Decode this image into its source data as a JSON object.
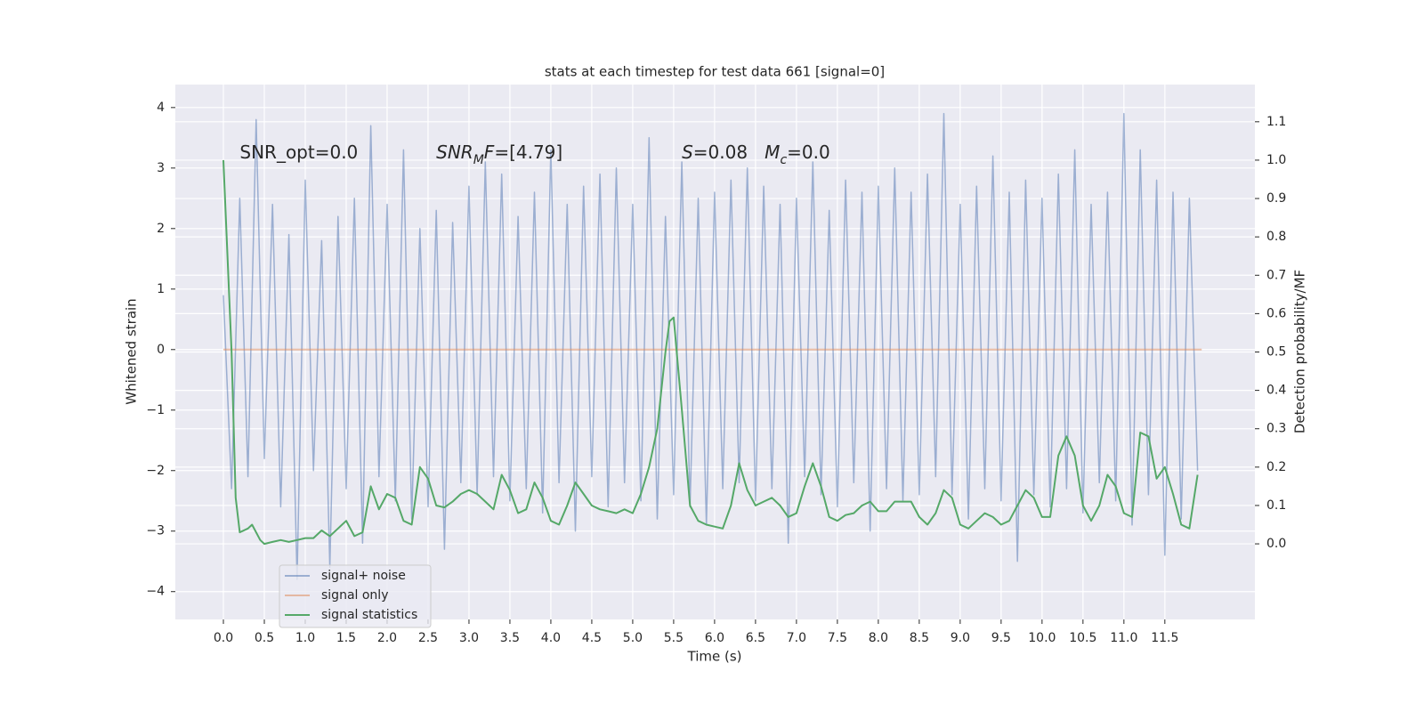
{
  "chart_data": {
    "type": "line",
    "title": "stats at each timestep for test data 661 [signal=0]",
    "xlabel": "Time (s)",
    "ylabel": "Whitened strain",
    "y2label": "Detection probability/MF",
    "xlim": [
      -0.587,
      12.6
    ],
    "ylim": [
      -4.46,
      4.38
    ],
    "y2lim": [
      -0.197,
      1.197
    ],
    "xticks": [
      {
        "value": 0,
        "label": "0.0"
      },
      0.5,
      {
        "value": 1,
        "label": "1.0"
      },
      1.5,
      {
        "value": 2,
        "label": "2.0"
      },
      2.5,
      {
        "value": 3,
        "label": "3.0"
      },
      3.5,
      {
        "value": 4,
        "label": "4.0"
      },
      4.5,
      {
        "value": 5,
        "label": "5.0"
      },
      5.5,
      {
        "value": 6,
        "label": "6.0"
      },
      6.5,
      {
        "value": 7,
        "label": "7.0"
      },
      7.5,
      {
        "value": 8,
        "label": "8.0"
      },
      8.5,
      {
        "value": 9,
        "label": "9.0"
      },
      9.5,
      {
        "value": 10,
        "label": "10.0"
      },
      10.5,
      {
        "value": 11,
        "label": "11.0"
      },
      11.5
    ],
    "yticks": [
      {
        "value": -4,
        "label": "−4"
      },
      {
        "value": -3,
        "label": "−3"
      },
      {
        "value": -2,
        "label": "−2"
      },
      {
        "value": -1,
        "label": "−1"
      },
      0,
      1,
      2,
      3,
      4
    ],
    "y2ticks": [
      {
        "value": 0,
        "label": "0.0"
      },
      0.1,
      0.2,
      0.3,
      0.4,
      0.5,
      0.6,
      0.7,
      0.8,
      0.9,
      {
        "value": 1,
        "label": "1.0"
      },
      1.1
    ],
    "grid": true,
    "legend": "lower left",
    "annotations": [
      {
        "x": 0.2,
        "y": 1.0,
        "parts": [
          {
            "text": "SNR_opt=0.0"
          }
        ]
      },
      {
        "x": 2.6,
        "y": 1.0,
        "parts": [
          {
            "text": "SNR",
            "italic": true
          },
          {
            "text": "M",
            "italic": true,
            "sub": true
          },
          {
            "text": "F",
            "italic": true
          },
          {
            "text": "=[4.79]"
          }
        ]
      },
      {
        "x": 5.6,
        "y": 1.0,
        "parts": [
          {
            "text": "S",
            "italic": true
          },
          {
            "text": "=0.08   "
          },
          {
            "text": "M",
            "italic": true
          },
          {
            "text": "c",
            "italic": true,
            "sub": true
          },
          {
            "text": "=0.0"
          }
        ]
      }
    ],
    "series": [
      {
        "name": "signal+ noise",
        "color": "#4c72b0",
        "opacity": 0.5,
        "axis": "y",
        "x": [
          0,
          0.1,
          0.2,
          0.3,
          0.4,
          0.5,
          0.6,
          0.7,
          0.8,
          0.9,
          1,
          1.1,
          1.2,
          1.3,
          1.4,
          1.5,
          1.6,
          1.7,
          1.8,
          1.9,
          2,
          2.1,
          2.2,
          2.3,
          2.4,
          2.5,
          2.6,
          2.7,
          2.8,
          2.9,
          3,
          3.1,
          3.2,
          3.3,
          3.4,
          3.5,
          3.6,
          3.7,
          3.8,
          3.9,
          4,
          4.1,
          4.2,
          4.3,
          4.4,
          4.5,
          4.6,
          4.7,
          4.8,
          4.9,
          5,
          5.1,
          5.2,
          5.3,
          5.4,
          5.5,
          5.6,
          5.7,
          5.8,
          5.9,
          6,
          6.1,
          6.2,
          6.3,
          6.4,
          6.5,
          6.6,
          6.7,
          6.8,
          6.9,
          7,
          7.1,
          7.2,
          7.3,
          7.4,
          7.5,
          7.6,
          7.7,
          7.8,
          7.9,
          8,
          8.1,
          8.2,
          8.3,
          8.4,
          8.5,
          8.6,
          8.7,
          8.8,
          8.9,
          9,
          9.1,
          9.2,
          9.3,
          9.4,
          9.5,
          9.6,
          9.7,
          9.8,
          9.9,
          10,
          10.1,
          10.2,
          10.3,
          10.4,
          10.5,
          10.6,
          10.7,
          10.8,
          10.9,
          11,
          11.1,
          11.2,
          11.3,
          11.4,
          11.5,
          11.6,
          11.7,
          11.8,
          11.9
        ],
        "values": [
          0.9,
          -2.3,
          2.5,
          -2.1,
          3.8,
          -1.8,
          2.4,
          -2.6,
          1.9,
          -3.8,
          2.8,
          -2.0,
          1.8,
          -3.6,
          2.2,
          -2.3,
          2.5,
          -3.2,
          3.7,
          -2.1,
          2.4,
          -2.5,
          3.3,
          -2.8,
          2.0,
          -2.6,
          2.3,
          -3.3,
          2.1,
          -2.2,
          2.7,
          -2.4,
          3.1,
          -2.1,
          2.9,
          -2.5,
          2.2,
          -2.3,
          2.6,
          -2.7,
          3.3,
          -2.2,
          2.4,
          -3.0,
          2.7,
          -2.1,
          2.9,
          -2.6,
          3.0,
          -2.2,
          2.4,
          -2.5,
          3.5,
          -2.8,
          2.2,
          -2.4,
          3.1,
          -2.6,
          2.5,
          -2.9,
          2.6,
          -2.3,
          2.8,
          -2.2,
          3.0,
          -2.5,
          2.7,
          -2.3,
          2.4,
          -3.2,
          2.5,
          -2.1,
          3.1,
          -2.4,
          2.3,
          -2.6,
          2.8,
          -2.2,
          2.6,
          -3.0,
          2.7,
          -2.3,
          3.0,
          -2.5,
          2.6,
          -2.4,
          2.9,
          -2.1,
          3.9,
          -2.4,
          2.4,
          -2.8,
          2.7,
          -2.3,
          3.2,
          -2.5,
          2.6,
          -3.5,
          2.8,
          -2.4,
          2.5,
          -2.6,
          2.9,
          -2.3,
          3.3,
          -2.7,
          2.4,
          -2.2,
          2.6,
          -2.5,
          3.9,
          -2.9,
          3.3,
          -2.4,
          2.8,
          -3.4,
          2.6,
          -2.8,
          2.5,
          -2.0
        ]
      },
      {
        "name": "signal only",
        "color": "#dd8452",
        "opacity": 0.5,
        "axis": "y",
        "x": [
          0,
          11.95
        ],
        "values": [
          0,
          0
        ]
      },
      {
        "name": "signal statistics",
        "color": "#55a868",
        "opacity": 1,
        "axis": "y2",
        "x": [
          0,
          0.1,
          0.15,
          0.2,
          0.3,
          0.35,
          0.45,
          0.5,
          0.6,
          0.7,
          0.8,
          0.9,
          1,
          1.1,
          1.2,
          1.3,
          1.4,
          1.5,
          1.6,
          1.7,
          1.8,
          1.9,
          2,
          2.1,
          2.2,
          2.3,
          2.4,
          2.5,
          2.6,
          2.7,
          2.8,
          2.9,
          3,
          3.1,
          3.2,
          3.3,
          3.4,
          3.5,
          3.6,
          3.7,
          3.8,
          3.9,
          4,
          4.1,
          4.2,
          4.3,
          4.4,
          4.5,
          4.6,
          4.7,
          4.8,
          4.9,
          5,
          5.1,
          5.2,
          5.3,
          5.4,
          5.45,
          5.5,
          5.6,
          5.7,
          5.8,
          5.9,
          6,
          6.1,
          6.2,
          6.3,
          6.4,
          6.5,
          6.6,
          6.7,
          6.8,
          6.9,
          7,
          7.1,
          7.2,
          7.3,
          7.4,
          7.5,
          7.6,
          7.7,
          7.8,
          7.9,
          8,
          8.1,
          8.2,
          8.3,
          8.4,
          8.5,
          8.6,
          8.7,
          8.8,
          8.9,
          9,
          9.1,
          9.2,
          9.3,
          9.4,
          9.5,
          9.6,
          9.7,
          9.8,
          9.9,
          10,
          10.1,
          10.2,
          10.3,
          10.4,
          10.5,
          10.6,
          10.7,
          10.8,
          10.9,
          11,
          11.1,
          11.2,
          11.3,
          11.4,
          11.5,
          11.6,
          11.7,
          11.8,
          11.9
        ],
        "values": [
          1.0,
          0.5,
          0.12,
          0.03,
          0.04,
          0.05,
          0.01,
          0.0,
          0.005,
          0.01,
          0.005,
          0.01,
          0.015,
          0.015,
          0.035,
          0.02,
          0.04,
          0.06,
          0.02,
          0.03,
          0.15,
          0.09,
          0.13,
          0.12,
          0.06,
          0.05,
          0.2,
          0.17,
          0.1,
          0.095,
          0.11,
          0.13,
          0.14,
          0.13,
          0.11,
          0.09,
          0.18,
          0.14,
          0.08,
          0.09,
          0.16,
          0.12,
          0.06,
          0.05,
          0.1,
          0.16,
          0.13,
          0.1,
          0.09,
          0.085,
          0.08,
          0.09,
          0.08,
          0.13,
          0.2,
          0.3,
          0.5,
          0.58,
          0.59,
          0.35,
          0.1,
          0.06,
          0.05,
          0.045,
          0.04,
          0.1,
          0.21,
          0.14,
          0.1,
          0.11,
          0.12,
          0.1,
          0.07,
          0.08,
          0.15,
          0.21,
          0.15,
          0.07,
          0.06,
          0.075,
          0.08,
          0.1,
          0.11,
          0.085,
          0.085,
          0.11,
          0.11,
          0.11,
          0.07,
          0.05,
          0.08,
          0.14,
          0.12,
          0.05,
          0.04,
          0.06,
          0.08,
          0.07,
          0.05,
          0.06,
          0.1,
          0.14,
          0.12,
          0.07,
          0.07,
          0.23,
          0.28,
          0.23,
          0.1,
          0.06,
          0.1,
          0.18,
          0.15,
          0.08,
          0.07,
          0.29,
          0.28,
          0.17,
          0.2,
          0.13,
          0.05,
          0.04,
          0.18
        ]
      }
    ]
  }
}
